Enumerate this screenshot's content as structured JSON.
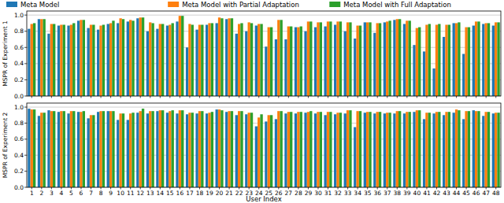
{
  "chart_data": [
    {
      "type": "bar",
      "ylabel": "MSPR of Experiment 1",
      "categories": [
        "1",
        "2",
        "3",
        "4",
        "5",
        "6",
        "7",
        "8",
        "9",
        "10",
        "11",
        "12",
        "13",
        "14",
        "15",
        "16",
        "17",
        "18",
        "19",
        "20",
        "21",
        "22",
        "23",
        "24",
        "25",
        "26",
        "27",
        "28",
        "29",
        "30",
        "31",
        "32",
        "33",
        "34",
        "35",
        "36",
        "37",
        "38",
        "39",
        "40",
        "41",
        "42",
        "43",
        "44",
        "45",
        "46",
        "47",
        "48"
      ],
      "series": [
        {
          "name": "Meta Model",
          "color": "#1f77b4",
          "values": [
            0.83,
            0.95,
            0.77,
            0.87,
            0.87,
            0.93,
            0.84,
            0.82,
            0.89,
            0.9,
            0.92,
            0.96,
            0.8,
            0.83,
            0.87,
            0.92,
            0.6,
            0.82,
            0.88,
            0.9,
            0.95,
            0.77,
            0.8,
            0.87,
            0.61,
            0.7,
            0.7,
            0.85,
            0.8,
            0.85,
            0.86,
            0.88,
            0.8,
            0.71,
            0.91,
            0.78,
            0.91,
            0.94,
            0.89,
            0.63,
            0.55,
            0.34,
            0.73,
            0.9,
            0.52,
            0.87,
            0.89,
            0.87
          ]
        },
        {
          "name": "Meta Model with Partial Adaptation",
          "color": "#ff7f0e",
          "values": [
            0.89,
            0.95,
            0.89,
            0.88,
            0.88,
            0.94,
            0.88,
            0.87,
            0.9,
            0.96,
            0.94,
            0.97,
            0.91,
            0.89,
            0.88,
            0.99,
            0.89,
            0.88,
            0.9,
            0.97,
            0.96,
            0.89,
            0.91,
            0.89,
            0.85,
            0.94,
            0.86,
            0.85,
            0.92,
            0.91,
            0.92,
            0.92,
            0.91,
            0.87,
            0.91,
            0.9,
            0.92,
            0.95,
            0.93,
            0.84,
            0.88,
            0.88,
            0.88,
            0.9,
            0.85,
            0.92,
            0.9,
            0.91
          ]
        },
        {
          "name": "Meta Model with Full Adaptation",
          "color": "#2ca02c",
          "values": [
            0.9,
            0.95,
            0.89,
            0.88,
            0.9,
            0.94,
            0.88,
            0.88,
            0.93,
            0.95,
            0.93,
            0.97,
            0.9,
            0.89,
            0.9,
            0.99,
            0.88,
            0.88,
            0.9,
            0.96,
            0.96,
            0.9,
            0.9,
            0.89,
            0.85,
            0.94,
            0.86,
            0.86,
            0.92,
            0.91,
            0.92,
            0.92,
            0.91,
            0.87,
            0.91,
            0.9,
            0.93,
            0.95,
            0.93,
            0.85,
            0.89,
            0.89,
            0.88,
            0.91,
            0.85,
            0.92,
            0.9,
            0.91
          ]
        }
      ],
      "ylim": [
        0,
        1.05
      ],
      "yticks": [
        {
          "value": 0,
          "label": "0.0"
        },
        {
          "value": 0.2,
          "label": "0.2"
        },
        {
          "value": 0.4,
          "label": "0.4"
        },
        {
          "value": 0.6,
          "label": "0.6"
        },
        {
          "value": 0.8,
          "label": "0.8"
        },
        {
          "value": 1,
          "label": "1.0"
        }
      ],
      "grid": true,
      "legend": "top",
      "tick_labels": "y"
    },
    {
      "type": "bar",
      "ylabel": "MSPR of Experiment 2",
      "xlabel": "User Index",
      "categories": [
        "1",
        "2",
        "3",
        "4",
        "5",
        "6",
        "7",
        "8",
        "9",
        "10",
        "11",
        "12",
        "13",
        "14",
        "15",
        "16",
        "17",
        "18",
        "19",
        "20",
        "21",
        "22",
        "23",
        "24",
        "25",
        "26",
        "27",
        "28",
        "29",
        "30",
        "31",
        "32",
        "33",
        "34",
        "35",
        "36",
        "37",
        "38",
        "39",
        "40",
        "41",
        "42",
        "43",
        "44",
        "45",
        "46",
        "47",
        "48"
      ],
      "series": [
        {
          "name": "Meta Model",
          "color": "#1f77b4",
          "values": [
            0.98,
            0.89,
            0.96,
            0.94,
            0.92,
            0.94,
            0.86,
            0.94,
            0.95,
            0.84,
            0.84,
            0.93,
            0.92,
            0.95,
            0.93,
            0.92,
            0.91,
            0.92,
            0.92,
            0.97,
            0.94,
            0.9,
            0.91,
            0.76,
            0.82,
            0.85,
            0.92,
            0.92,
            0.93,
            0.92,
            0.9,
            0.91,
            0.92,
            0.75,
            0.93,
            0.92,
            0.92,
            0.92,
            0.92,
            0.94,
            0.85,
            0.92,
            0.9,
            0.93,
            0.85,
            0.96,
            0.89,
            0.92
          ]
        },
        {
          "name": "Meta Model with Partial Adaptation",
          "color": "#ff7f0e",
          "values": [
            0.97,
            0.93,
            0.95,
            0.95,
            0.95,
            0.94,
            0.9,
            0.95,
            0.95,
            0.92,
            0.92,
            0.95,
            0.95,
            0.96,
            0.95,
            0.96,
            0.93,
            0.95,
            0.93,
            0.97,
            0.95,
            0.95,
            0.93,
            0.87,
            0.9,
            0.95,
            0.94,
            0.94,
            0.94,
            0.94,
            0.94,
            0.93,
            0.96,
            0.95,
            0.94,
            0.94,
            0.93,
            0.95,
            0.94,
            0.96,
            0.93,
            0.94,
            0.94,
            0.97,
            0.95,
            0.95,
            0.94,
            0.93
          ]
        },
        {
          "name": "Meta Model with Full Adaptation",
          "color": "#2ca02c",
          "values": [
            0.97,
            0.93,
            0.95,
            0.95,
            0.95,
            0.95,
            0.9,
            0.95,
            0.95,
            0.92,
            0.93,
            0.98,
            0.95,
            0.96,
            0.96,
            0.96,
            0.93,
            0.95,
            0.94,
            0.96,
            0.95,
            0.95,
            0.93,
            0.91,
            0.9,
            0.95,
            0.94,
            0.94,
            0.95,
            0.94,
            0.94,
            0.93,
            0.96,
            0.95,
            0.94,
            0.94,
            0.93,
            0.95,
            0.94,
            0.96,
            0.93,
            0.94,
            0.94,
            0.96,
            0.95,
            0.95,
            0.94,
            0.93
          ]
        }
      ],
      "ylim": [
        0,
        1.05
      ],
      "yticks": [
        {
          "value": 0,
          "label": "0.0"
        },
        {
          "value": 0.2,
          "label": "0.2"
        },
        {
          "value": 0.4,
          "label": "0.4"
        },
        {
          "value": 0.6,
          "label": "0.6"
        },
        {
          "value": 0.8,
          "label": "0.8"
        },
        {
          "value": 1,
          "label": "1.0"
        }
      ],
      "grid": true
    }
  ]
}
